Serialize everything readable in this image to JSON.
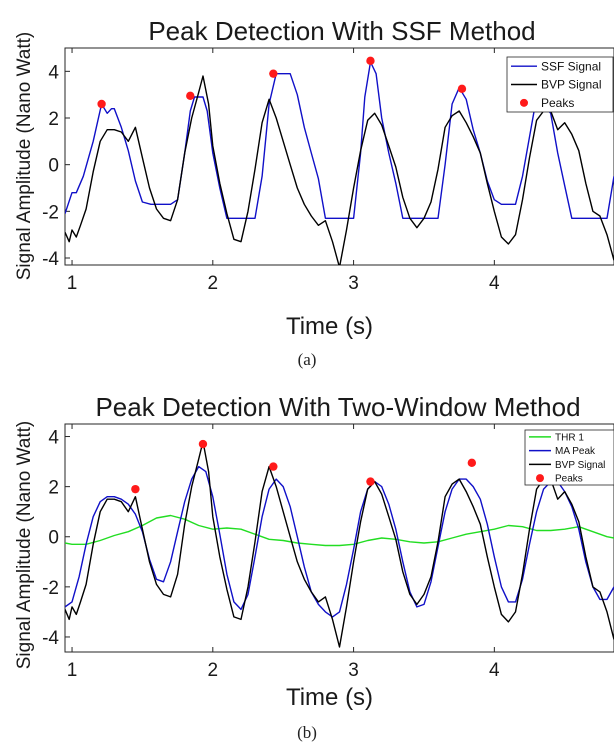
{
  "colors": {
    "ssf": "#1010c8",
    "bvp": "#000000",
    "peaks": "#ff1a1a",
    "thr": "#22dd22",
    "ma": "#1010c8"
  },
  "chart_data": [
    {
      "type": "line",
      "title": "Peak Detection With SSF Method",
      "xlabel": "Time (s)",
      "ylabel": "Signal Amplitude (Nano Watt)",
      "caption": "(a)",
      "xlim": [
        0.95,
        4.85
      ],
      "ylim": [
        -4.3,
        5.0
      ],
      "xticks": [
        1,
        2,
        3,
        4
      ],
      "yticks": [
        -4,
        -2,
        0,
        2,
        4
      ],
      "xtick_labels": [
        "1",
        "2",
        "3",
        "4"
      ],
      "ytick_labels": [
        "-4",
        "-2",
        "0",
        "2",
        "4"
      ],
      "legend_position": "top-right",
      "series": [
        {
          "name": "SSF Signal",
          "kind": "line",
          "color": "#1010c8",
          "x": [
            0.95,
            1.0,
            1.03,
            1.08,
            1.15,
            1.21,
            1.25,
            1.28,
            1.3,
            1.35,
            1.4,
            1.45,
            1.5,
            1.56,
            1.6,
            1.65,
            1.7,
            1.75,
            1.8,
            1.84,
            1.87,
            1.9,
            1.93,
            1.96,
            2.0,
            2.05,
            2.1,
            2.2,
            2.3,
            2.35,
            2.4,
            2.45,
            2.5,
            2.55,
            2.6,
            2.65,
            2.7,
            2.75,
            2.8,
            2.85,
            2.9,
            2.95,
            3.0,
            3.05,
            3.08,
            3.12,
            3.16,
            3.2,
            3.25,
            3.3,
            3.35,
            3.4,
            3.5,
            3.6,
            3.65,
            3.7,
            3.75,
            3.8,
            3.85,
            3.9,
            3.95,
            4.0,
            4.05,
            4.1,
            4.15,
            4.2,
            4.3,
            4.4,
            4.45,
            4.5,
            4.55,
            4.6,
            4.7,
            4.8,
            4.85
          ],
          "y": [
            -2.1,
            -1.2,
            -1.2,
            -0.5,
            1.0,
            2.6,
            2.2,
            2.4,
            2.4,
            1.6,
            0.6,
            -0.7,
            -1.6,
            -1.7,
            -1.7,
            -1.7,
            -1.7,
            -1.5,
            0.5,
            2.3,
            2.9,
            2.9,
            2.9,
            2.3,
            0.5,
            -1.0,
            -2.3,
            -2.3,
            -2.3,
            -0.5,
            2.6,
            3.9,
            3.9,
            3.9,
            3.0,
            1.6,
            0.5,
            -0.6,
            -2.3,
            -2.3,
            -2.3,
            -2.3,
            -2.3,
            0.5,
            2.9,
            4.4,
            3.9,
            2.0,
            0.5,
            -0.8,
            -2.3,
            -2.3,
            -2.3,
            -2.3,
            0.0,
            2.6,
            3.3,
            2.8,
            1.5,
            0.5,
            -0.7,
            -1.5,
            -1.7,
            -1.7,
            -1.7,
            -0.5,
            2.9,
            2.2,
            0.5,
            -0.9,
            -2.3,
            -2.3,
            -2.3,
            -2.3,
            -0.5
          ]
        },
        {
          "name": "BVP Signal",
          "kind": "line",
          "color": "#000000",
          "x": [
            0.95,
            0.98,
            1.0,
            1.03,
            1.06,
            1.1,
            1.15,
            1.2,
            1.25,
            1.3,
            1.35,
            1.4,
            1.45,
            1.5,
            1.55,
            1.6,
            1.65,
            1.7,
            1.75,
            1.8,
            1.85,
            1.9,
            1.93,
            1.97,
            2.0,
            2.05,
            2.1,
            2.15,
            2.2,
            2.25,
            2.3,
            2.35,
            2.4,
            2.45,
            2.5,
            2.55,
            2.6,
            2.65,
            2.7,
            2.75,
            2.8,
            2.85,
            2.9,
            2.95,
            3.0,
            3.05,
            3.1,
            3.15,
            3.2,
            3.25,
            3.3,
            3.35,
            3.4,
            3.45,
            3.5,
            3.55,
            3.6,
            3.65,
            3.7,
            3.75,
            3.8,
            3.85,
            3.9,
            3.95,
            4.0,
            4.05,
            4.1,
            4.15,
            4.2,
            4.25,
            4.3,
            4.35,
            4.4,
            4.45,
            4.5,
            4.55,
            4.6,
            4.65,
            4.7,
            4.75,
            4.8,
            4.85
          ],
          "y": [
            -2.9,
            -3.3,
            -2.8,
            -3.1,
            -2.6,
            -1.9,
            -0.3,
            1.0,
            1.5,
            1.5,
            1.4,
            1.0,
            1.6,
            0.3,
            -1.0,
            -1.9,
            -2.3,
            -2.4,
            -1.5,
            0.5,
            2.0,
            3.1,
            3.8,
            2.6,
            0.8,
            -0.8,
            -2.1,
            -3.2,
            -3.3,
            -2.0,
            -0.2,
            1.8,
            2.8,
            2.0,
            1.0,
            0.0,
            -1.0,
            -1.7,
            -2.2,
            -2.6,
            -2.4,
            -3.3,
            -4.4,
            -2.8,
            -1.0,
            0.6,
            1.9,
            2.2,
            1.7,
            0.8,
            -0.1,
            -1.4,
            -2.3,
            -2.7,
            -2.3,
            -1.6,
            -0.2,
            1.6,
            2.1,
            2.3,
            1.8,
            1.2,
            0.5,
            -0.8,
            -2.0,
            -3.1,
            -3.4,
            -3.0,
            -1.5,
            0.3,
            1.9,
            2.3,
            2.3,
            1.5,
            1.8,
            1.3,
            0.6,
            -0.8,
            -2.0,
            -2.2,
            -3.0,
            -4.1
          ]
        },
        {
          "name": "Peaks",
          "kind": "scatter",
          "color": "#ff1a1a",
          "x": [
            1.21,
            1.84,
            2.43,
            3.12,
            3.77
          ],
          "y": [
            2.6,
            2.95,
            3.9,
            4.45,
            3.25
          ]
        }
      ]
    },
    {
      "type": "line",
      "title": "Peak Detection With Two-Window Method",
      "xlabel": "Time (s)",
      "ylabel": "Signal Amplitude (Nano Watt)",
      "caption": "(b)",
      "xlim": [
        0.95,
        4.85
      ],
      "ylim": [
        -4.6,
        4.5
      ],
      "xticks": [
        1,
        2,
        3,
        4
      ],
      "yticks": [
        -4,
        -2,
        0,
        2,
        4
      ],
      "xtick_labels": [
        "1",
        "2",
        "3",
        "4"
      ],
      "ytick_labels": [
        "-4",
        "-2",
        "0",
        "2",
        "4"
      ],
      "legend_position": "top-right",
      "series": [
        {
          "name": "THR 1",
          "kind": "line",
          "color": "#22dd22",
          "x": [
            0.95,
            1.0,
            1.1,
            1.2,
            1.3,
            1.4,
            1.5,
            1.6,
            1.7,
            1.8,
            1.9,
            2.0,
            2.1,
            2.2,
            2.3,
            2.4,
            2.5,
            2.6,
            2.7,
            2.8,
            2.9,
            3.0,
            3.1,
            3.2,
            3.3,
            3.4,
            3.5,
            3.6,
            3.7,
            3.8,
            3.9,
            4.0,
            4.1,
            4.2,
            4.3,
            4.4,
            4.5,
            4.6,
            4.7,
            4.8,
            4.85
          ],
          "y": [
            -0.25,
            -0.3,
            -0.3,
            -0.15,
            0.05,
            0.2,
            0.45,
            0.75,
            0.85,
            0.7,
            0.45,
            0.3,
            0.35,
            0.3,
            0.1,
            -0.1,
            -0.15,
            -0.25,
            -0.3,
            -0.35,
            -0.35,
            -0.3,
            -0.15,
            -0.05,
            -0.1,
            -0.2,
            -0.25,
            -0.2,
            -0.05,
            0.1,
            0.2,
            0.3,
            0.45,
            0.4,
            0.25,
            0.25,
            0.3,
            0.4,
            0.2,
            0.0,
            -0.05
          ]
        },
        {
          "name": "MA Peak",
          "kind": "line",
          "color": "#1010c8",
          "x": [
            0.95,
            1.0,
            1.05,
            1.1,
            1.15,
            1.2,
            1.25,
            1.3,
            1.35,
            1.4,
            1.45,
            1.5,
            1.55,
            1.6,
            1.65,
            1.7,
            1.75,
            1.8,
            1.85,
            1.9,
            1.95,
            2.0,
            2.05,
            2.1,
            2.15,
            2.2,
            2.25,
            2.3,
            2.35,
            2.4,
            2.45,
            2.5,
            2.55,
            2.6,
            2.65,
            2.7,
            2.75,
            2.8,
            2.85,
            2.9,
            2.95,
            3.0,
            3.05,
            3.1,
            3.15,
            3.2,
            3.25,
            3.3,
            3.35,
            3.4,
            3.45,
            3.5,
            3.55,
            3.6,
            3.65,
            3.7,
            3.75,
            3.8,
            3.85,
            3.9,
            3.95,
            4.0,
            4.05,
            4.1,
            4.15,
            4.2,
            4.25,
            4.3,
            4.35,
            4.4,
            4.45,
            4.5,
            4.55,
            4.6,
            4.65,
            4.7,
            4.75,
            4.8,
            4.85
          ],
          "y": [
            -2.8,
            -2.6,
            -1.6,
            -0.3,
            0.8,
            1.4,
            1.6,
            1.6,
            1.5,
            1.3,
            0.9,
            0.2,
            -0.9,
            -1.7,
            -1.8,
            -1.0,
            0.2,
            1.4,
            2.3,
            2.8,
            2.6,
            1.6,
            0.1,
            -1.5,
            -2.6,
            -2.9,
            -2.3,
            -0.8,
            0.8,
            1.9,
            2.3,
            2.0,
            1.2,
            0.0,
            -1.2,
            -2.2,
            -2.7,
            -3.0,
            -3.2,
            -3.0,
            -1.9,
            -0.5,
            1.0,
            1.9,
            2.2,
            2.0,
            1.3,
            0.3,
            -1.0,
            -2.2,
            -2.8,
            -2.7,
            -1.8,
            -0.4,
            1.0,
            1.9,
            2.3,
            2.3,
            2.0,
            1.5,
            0.5,
            -0.8,
            -2.0,
            -2.6,
            -2.6,
            -1.7,
            -0.3,
            1.0,
            1.9,
            2.2,
            2.2,
            1.8,
            1.2,
            0.3,
            -1.0,
            -2.0,
            -2.5,
            -2.5,
            -2.0
          ]
        },
        {
          "name": "BVP Signal",
          "kind": "line",
          "color": "#000000",
          "x": [
            0.95,
            0.98,
            1.0,
            1.03,
            1.06,
            1.1,
            1.15,
            1.2,
            1.25,
            1.3,
            1.35,
            1.4,
            1.45,
            1.5,
            1.55,
            1.6,
            1.65,
            1.7,
            1.75,
            1.8,
            1.85,
            1.9,
            1.93,
            1.97,
            2.0,
            2.05,
            2.1,
            2.15,
            2.2,
            2.25,
            2.3,
            2.35,
            2.4,
            2.45,
            2.5,
            2.55,
            2.6,
            2.65,
            2.7,
            2.75,
            2.8,
            2.85,
            2.9,
            2.95,
            3.0,
            3.05,
            3.1,
            3.15,
            3.2,
            3.25,
            3.3,
            3.35,
            3.4,
            3.45,
            3.5,
            3.55,
            3.6,
            3.65,
            3.7,
            3.75,
            3.8,
            3.85,
            3.9,
            3.95,
            4.0,
            4.05,
            4.1,
            4.15,
            4.2,
            4.25,
            4.3,
            4.35,
            4.4,
            4.45,
            4.5,
            4.55,
            4.6,
            4.65,
            4.7,
            4.75,
            4.8,
            4.85
          ],
          "y": [
            -2.9,
            -3.3,
            -2.8,
            -3.1,
            -2.6,
            -1.9,
            -0.3,
            1.0,
            1.5,
            1.5,
            1.4,
            1.0,
            1.6,
            0.3,
            -1.0,
            -1.9,
            -2.3,
            -2.4,
            -1.5,
            0.5,
            2.0,
            3.1,
            3.8,
            2.6,
            0.8,
            -0.8,
            -2.1,
            -3.2,
            -3.3,
            -2.0,
            -0.2,
            1.8,
            2.8,
            2.0,
            1.0,
            0.0,
            -1.0,
            -1.7,
            -2.2,
            -2.6,
            -2.4,
            -3.3,
            -4.4,
            -2.8,
            -1.0,
            0.6,
            1.9,
            2.2,
            1.7,
            0.8,
            -0.1,
            -1.4,
            -2.3,
            -2.7,
            -2.3,
            -1.6,
            -0.2,
            1.6,
            2.1,
            2.3,
            1.8,
            1.2,
            0.5,
            -0.8,
            -2.0,
            -3.1,
            -3.4,
            -3.0,
            -1.5,
            0.3,
            1.9,
            2.3,
            2.3,
            1.5,
            1.8,
            1.3,
            0.6,
            -0.8,
            -2.0,
            -2.2,
            -3.0,
            -4.1
          ]
        },
        {
          "name": "Peaks",
          "kind": "scatter",
          "color": "#ff1a1a",
          "x": [
            1.45,
            1.93,
            2.43,
            3.12,
            3.84
          ],
          "y": [
            1.9,
            3.7,
            2.8,
            2.2,
            2.95
          ]
        }
      ]
    }
  ]
}
